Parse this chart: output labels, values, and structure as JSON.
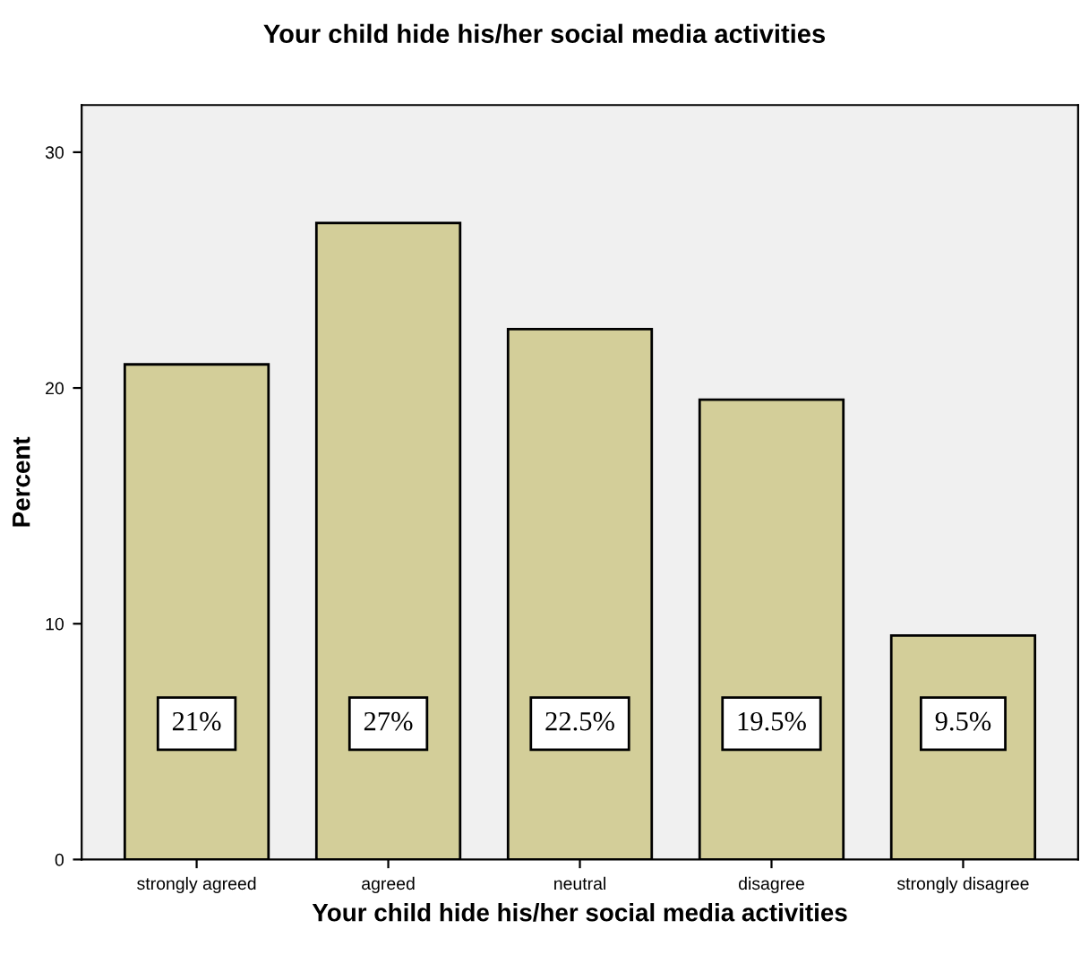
{
  "chart_data": {
    "type": "bar",
    "title": "Your child hide his/her social media activities",
    "xlabel": "Your child hide his/her social media activities",
    "ylabel": "Percent",
    "categories": [
      "strongly agreed",
      "agreed",
      "neutral",
      "disagree",
      "strongly disagree"
    ],
    "values": [
      21,
      27,
      22.5,
      19.5,
      9.5
    ],
    "value_labels": [
      "21%",
      "27%",
      "22.5%",
      "19.5%",
      "9.5%"
    ],
    "color": "#d3ce99",
    "ylim": [
      0,
      32
    ],
    "yticks": [
      0,
      10,
      20,
      30
    ],
    "grid": false,
    "legend": false
  }
}
